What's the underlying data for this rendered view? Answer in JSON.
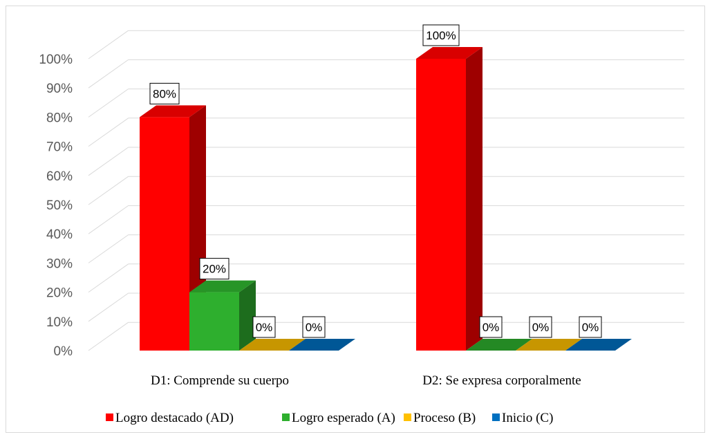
{
  "chart_data": {
    "type": "bar",
    "categories": [
      "D1: Comprende su cuerpo",
      "D2: Se expresa corporalmente"
    ],
    "series": [
      {
        "name": "Logro destacado (AD)",
        "values": [
          80,
          100
        ],
        "color": "#ff0000"
      },
      {
        "name": "Logro esperado (A)",
        "values": [
          20,
          0
        ],
        "color": "#2eaf2e"
      },
      {
        "name": "Proceso (B)",
        "values": [
          0,
          0
        ],
        "color": "#ffc000"
      },
      {
        "name": "Inicio (C)",
        "values": [
          0,
          0
        ],
        "color": "#0070c0"
      }
    ],
    "data_labels": [
      [
        "80%",
        "100%"
      ],
      [
        "20%",
        "0%"
      ],
      [
        "0%",
        "0%"
      ],
      [
        "0%",
        "0%"
      ]
    ],
    "yticks": [
      "0%",
      "10%",
      "20%",
      "30%",
      "40%",
      "50%",
      "60%",
      "70%",
      "80%",
      "90%",
      "100%"
    ],
    "ylim": [
      0,
      100
    ],
    "grid": true,
    "legend_position": "bottom",
    "style": "3d-column"
  }
}
